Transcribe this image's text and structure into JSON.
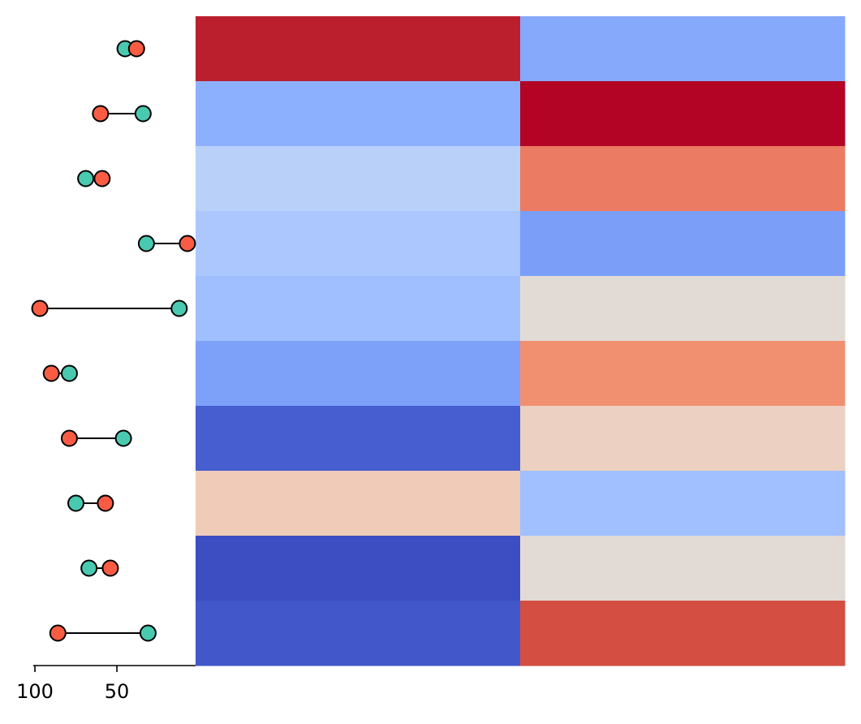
{
  "chart_data": [
    {
      "type": "dumbbell",
      "xaxis": {
        "reversed": true,
        "xlim": [
          101,
          2
        ],
        "tick_values": [
          100,
          50
        ],
        "tick_labels": [
          "100",
          "50"
        ]
      },
      "colors": {
        "teal": "#48c9b0",
        "coral": "#fa5c43",
        "stroke": "#000000"
      },
      "rows": [
        {
          "teal": 45,
          "coral": 38
        },
        {
          "teal": 34,
          "coral": 60
        },
        {
          "teal": 69,
          "coral": 59
        },
        {
          "teal": 32,
          "coral": 7
        },
        {
          "teal": 12,
          "coral": 97
        },
        {
          "teal": 79,
          "coral": 90
        },
        {
          "teal": 46,
          "coral": 79
        },
        {
          "teal": 75,
          "coral": 57
        },
        {
          "teal": 67,
          "coral": 54
        },
        {
          "teal": 31,
          "coral": 86
        }
      ]
    },
    {
      "type": "heatmap",
      "colormap": "coolwarm",
      "columns": 2,
      "cell_colors": [
        [
          "#bb1f2e",
          "#86a9fc"
        ],
        [
          "#8db0fe",
          "#b40426"
        ],
        [
          "#b9d0f9",
          "#ec7b63"
        ],
        [
          "#abc7fd",
          "#7b9ff9"
        ],
        [
          "#9fbfff",
          "#e2dad5"
        ],
        [
          "#7da0f9",
          "#f18f71"
        ],
        [
          "#465ecf",
          "#ecd0c1"
        ],
        [
          "#f0ccb8",
          "#a1c0ff"
        ],
        [
          "#3c4ec2",
          "#e2dad5"
        ],
        [
          "#4257c9",
          "#d44e41"
        ]
      ]
    }
  ]
}
